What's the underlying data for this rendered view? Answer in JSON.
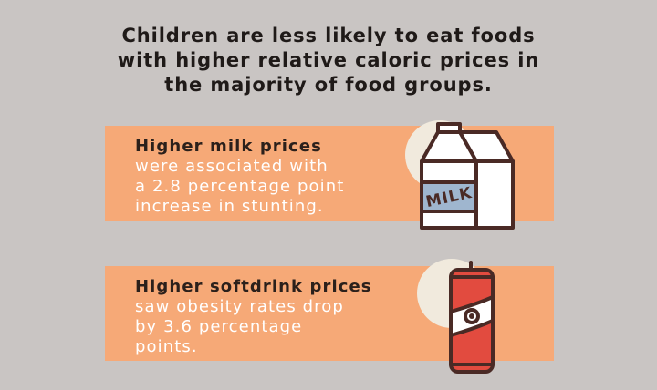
{
  "headline": {
    "lines": [
      "Children are less likely to eat foods",
      "with higher relative caloric prices in",
      "the majority of food groups."
    ]
  },
  "cards": [
    {
      "title": "Higher milk prices",
      "body": [
        "were associated with",
        "a 2.8 percentage point",
        "increase in stunting."
      ],
      "icon": "milk-carton-icon",
      "icon_label": "MILK"
    },
    {
      "title": "Higher softdrink prices",
      "body": [
        "saw obesity rates drop",
        "by 3.6 percentage",
        "points."
      ],
      "icon": "soda-can-icon"
    }
  ],
  "colors": {
    "background": "#c9c5c3",
    "card": "#f6a977",
    "icon_circle": "#f1eadd",
    "outline": "#4a2a25",
    "milk_label": "#9fb6cf",
    "can_red": "#e24b3f",
    "card_text": "#ffffff",
    "title_text": "#2b201b"
  }
}
